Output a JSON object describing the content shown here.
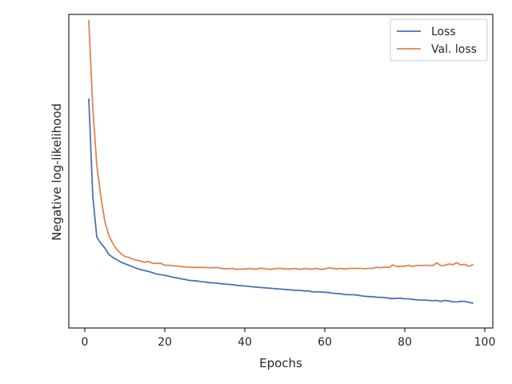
{
  "chart_data": {
    "type": "line",
    "title": "",
    "xlabel": "Epochs",
    "ylabel": "Negative log-likelihood",
    "xlim": [
      -4,
      102
    ],
    "ylim": [
      0,
      1
    ],
    "xticks": [
      0,
      20,
      40,
      60,
      80,
      100
    ],
    "y_tick_labels_shown": false,
    "grid": false,
    "legend_position": "top-right",
    "series": [
      {
        "name": "Loss",
        "color": "#4c72b0",
        "x": [
          1,
          2,
          3,
          4,
          5,
          6,
          7,
          8,
          9,
          10,
          11,
          12,
          13,
          14,
          15,
          16,
          17,
          18,
          19,
          20,
          21,
          22,
          23,
          24,
          25,
          26,
          27,
          28,
          29,
          30,
          31,
          32,
          33,
          34,
          35,
          36,
          37,
          38,
          39,
          40,
          41,
          42,
          43,
          44,
          45,
          46,
          47,
          48,
          49,
          50,
          51,
          52,
          53,
          54,
          55,
          56,
          57,
          58,
          59,
          60,
          61,
          62,
          63,
          64,
          65,
          66,
          67,
          68,
          69,
          70,
          71,
          72,
          73,
          74,
          75,
          76,
          77,
          78,
          79,
          80,
          81,
          82,
          83,
          84,
          85,
          86,
          87,
          88,
          89,
          90,
          91,
          92,
          93,
          94,
          95,
          96,
          97
        ],
        "y": [
          0.73,
          0.42,
          0.29,
          0.27,
          0.255,
          0.235,
          0.225,
          0.218,
          0.21,
          0.205,
          0.2,
          0.195,
          0.19,
          0.186,
          0.183,
          0.18,
          0.176,
          0.172,
          0.17,
          0.168,
          0.165,
          0.162,
          0.16,
          0.157,
          0.155,
          0.152,
          0.151,
          0.15,
          0.148,
          0.147,
          0.145,
          0.144,
          0.143,
          0.141,
          0.14,
          0.139,
          0.138,
          0.136,
          0.135,
          0.134,
          0.133,
          0.131,
          0.13,
          0.129,
          0.128,
          0.127,
          0.126,
          0.125,
          0.124,
          0.123,
          0.122,
          0.121,
          0.12,
          0.12,
          0.118,
          0.118,
          0.115,
          0.115,
          0.115,
          0.114,
          0.113,
          0.111,
          0.11,
          0.109,
          0.107,
          0.106,
          0.106,
          0.105,
          0.103,
          0.101,
          0.1,
          0.1,
          0.098,
          0.098,
          0.097,
          0.095,
          0.094,
          0.095,
          0.095,
          0.093,
          0.093,
          0.091,
          0.09,
          0.089,
          0.089,
          0.088,
          0.087,
          0.088,
          0.085,
          0.088,
          0.086,
          0.084,
          0.083,
          0.085,
          0.085,
          0.082,
          0.079
        ]
      },
      {
        "name": "Val. loss",
        "color": "#dd8452",
        "x": [
          1,
          2,
          3,
          4,
          5,
          6,
          7,
          8,
          9,
          10,
          11,
          12,
          13,
          14,
          15,
          16,
          17,
          18,
          19,
          20,
          21,
          22,
          23,
          24,
          25,
          26,
          27,
          28,
          29,
          30,
          31,
          32,
          33,
          34,
          35,
          36,
          37,
          38,
          39,
          40,
          41,
          42,
          43,
          44,
          45,
          46,
          47,
          48,
          49,
          50,
          51,
          52,
          53,
          54,
          55,
          56,
          57,
          58,
          59,
          60,
          61,
          62,
          63,
          64,
          65,
          66,
          67,
          68,
          69,
          70,
          71,
          72,
          73,
          74,
          75,
          76,
          77,
          78,
          79,
          80,
          81,
          82,
          83,
          84,
          85,
          86,
          87,
          88,
          89,
          90,
          91,
          92,
          93,
          94,
          95,
          96,
          97
        ],
        "y": [
          0.98,
          0.7,
          0.52,
          0.42,
          0.34,
          0.295,
          0.27,
          0.25,
          0.238,
          0.228,
          0.225,
          0.22,
          0.216,
          0.213,
          0.21,
          0.212,
          0.206,
          0.206,
          0.206,
          0.2,
          0.2,
          0.198,
          0.198,
          0.196,
          0.195,
          0.194,
          0.193,
          0.193,
          0.193,
          0.193,
          0.192,
          0.192,
          0.193,
          0.19,
          0.189,
          0.189,
          0.19,
          0.187,
          0.188,
          0.188,
          0.19,
          0.188,
          0.188,
          0.191,
          0.189,
          0.187,
          0.188,
          0.19,
          0.19,
          0.188,
          0.188,
          0.189,
          0.189,
          0.187,
          0.19,
          0.188,
          0.188,
          0.19,
          0.187,
          0.188,
          0.192,
          0.19,
          0.188,
          0.19,
          0.188,
          0.19,
          0.19,
          0.19,
          0.19,
          0.189,
          0.19,
          0.19,
          0.194,
          0.192,
          0.194,
          0.193,
          0.201,
          0.196,
          0.197,
          0.197,
          0.2,
          0.196,
          0.2,
          0.199,
          0.2,
          0.2,
          0.199,
          0.208,
          0.199,
          0.2,
          0.204,
          0.202,
          0.208,
          0.201,
          0.203,
          0.197,
          0.202
        ]
      }
    ]
  }
}
